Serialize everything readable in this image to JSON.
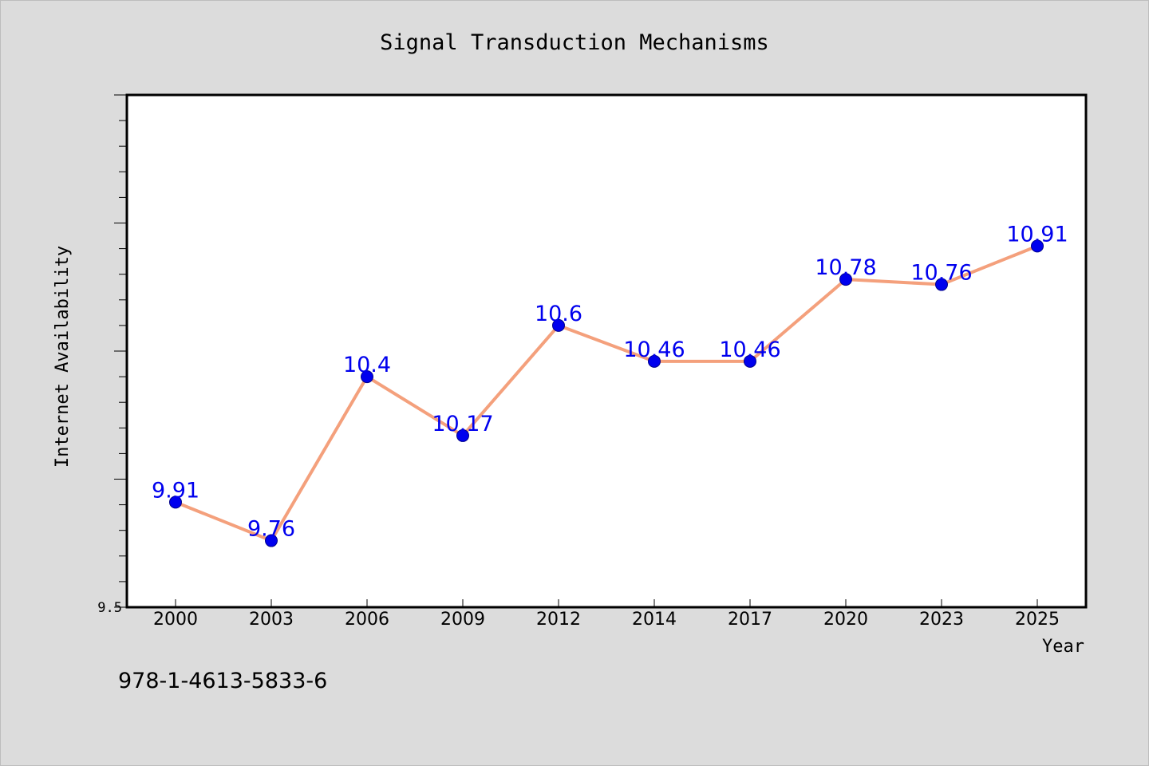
{
  "chart_data": {
    "type": "line",
    "title": "Signal Transduction Mechanisms",
    "xlabel": "Year",
    "ylabel": "Internet Availability",
    "categories": [
      "2000",
      "2003",
      "2006",
      "2009",
      "2012",
      "2014",
      "2017",
      "2020",
      "2023",
      "2025"
    ],
    "series": [
      {
        "values": [
          9.91,
          9.76,
          10.4,
          10.17,
          10.6,
          10.46,
          10.46,
          10.78,
          10.76,
          10.91
        ]
      }
    ],
    "data_labels": [
      "9.91",
      "9.76",
      "10.4",
      "10.17",
      "10.6",
      "10.46",
      "10.46",
      "10.78",
      "10.76",
      "10.91"
    ],
    "ylim": [
      9.5,
      11.5
    ],
    "ytick_label": "9.5",
    "grid": false,
    "colors": {
      "line": "#f4a07c",
      "marker": "#0000ee",
      "label": "#0000ee",
      "background": "#dcdcdc",
      "plot_background": "#ffffff"
    }
  },
  "footnote": "978-1-4613-5833-6"
}
